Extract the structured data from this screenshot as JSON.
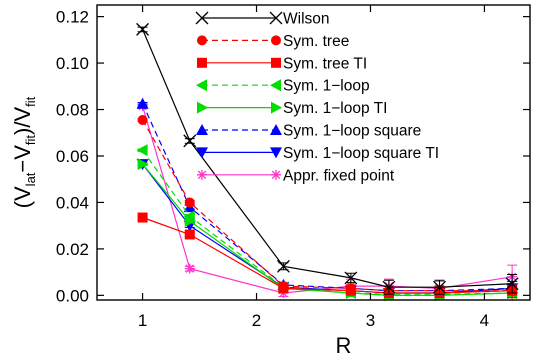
{
  "chart_data": {
    "type": "line",
    "xlabel": "R",
    "ylabel": {
      "parts": [
        "(V",
        "lat",
        "−V",
        "fit",
        ")/V",
        "fit"
      ]
    },
    "xlim": [
      0.6,
      4.4
    ],
    "ylim": [
      -0.002,
      0.125
    ],
    "xticks": [
      1,
      2,
      3,
      4
    ],
    "yticks": [
      0.0,
      0.02,
      0.04,
      0.06,
      0.08,
      0.1,
      0.12
    ],
    "xtick_labels": [
      "1",
      "2",
      "3",
      "4"
    ],
    "ytick_labels": [
      "0.00",
      "0.02",
      "0.04",
      "0.06",
      "0.08",
      "0.10",
      "0.12"
    ],
    "grid": false,
    "legend_position": "top-right",
    "series": [
      {
        "name": "Wilson",
        "color": "#000000",
        "marker": "x",
        "dash": "solid",
        "x": [
          1.0,
          1.414,
          2.236,
          2.828,
          3.162,
          3.606,
          4.243
        ],
        "y": [
          0.1145,
          0.0665,
          0.0125,
          0.0075,
          0.0035,
          0.0035,
          0.005
        ],
        "err": [
          0.001,
          0.001,
          0.0015,
          0.002,
          0.003,
          0.003,
          0.004
        ]
      },
      {
        "name": "Sym. tree",
        "color": "#ff0000",
        "marker": "circle",
        "dash": "dashed",
        "x": [
          1.0,
          1.414,
          2.236,
          2.828,
          3.162,
          3.606,
          4.243
        ],
        "y": [
          0.0755,
          0.04,
          0.004,
          0.003,
          0.002,
          0.002,
          0.002
        ],
        "err": [
          0.0005,
          0.0008,
          0.001,
          0.0015,
          0.002,
          0.002,
          0.003
        ]
      },
      {
        "name": "Sym. tree TI",
        "color": "#ff0000",
        "marker": "square",
        "dash": "solid",
        "x": [
          1.0,
          1.414,
          2.236,
          2.828,
          3.162,
          3.606,
          4.243
        ],
        "y": [
          0.0335,
          0.0262,
          0.003,
          0.002,
          0.001,
          0.001,
          0.002
        ],
        "err": [
          0.0005,
          0.0008,
          0.001,
          0.0015,
          0.002,
          0.002,
          0.003
        ]
      },
      {
        "name": "Sym. 1−loop",
        "color": "#00dd00",
        "marker": "triangle-left",
        "dash": "dashed",
        "x": [
          1.0,
          1.414,
          2.236,
          2.828,
          3.162,
          3.606,
          4.243
        ],
        "y": [
          0.0625,
          0.034,
          0.0035,
          0.001,
          0.0005,
          0.0005,
          0.001
        ],
        "err": [
          0.0005,
          0.0008,
          0.001,
          0.0015,
          0.002,
          0.002,
          0.003
        ]
      },
      {
        "name": "Sym. 1−loop TI",
        "color": "#00dd00",
        "marker": "triangle-right",
        "dash": "solid",
        "x": [
          1.0,
          1.414,
          2.236,
          2.828,
          3.162,
          3.606,
          4.243
        ],
        "y": [
          0.0565,
          0.032,
          0.003,
          0.001,
          0.0,
          0.0,
          0.001
        ],
        "err": [
          0.0005,
          0.0008,
          0.001,
          0.0015,
          0.002,
          0.002,
          0.003
        ]
      },
      {
        "name": "Sym. 1−loop square",
        "color": "#0000ff",
        "marker": "triangle-up",
        "dash": "dashed",
        "x": [
          1.0,
          1.414,
          2.236,
          2.828,
          3.162,
          3.606,
          4.243
        ],
        "y": [
          0.0825,
          0.038,
          0.0045,
          0.003,
          0.002,
          0.002,
          0.003
        ],
        "err": [
          0.0005,
          0.0008,
          0.001,
          0.0015,
          0.002,
          0.002,
          0.003
        ]
      },
      {
        "name": "Sym. 1−loop square TI",
        "color": "#0000ff",
        "marker": "triangle-down",
        "dash": "solid",
        "x": [
          1.0,
          1.414,
          2.236,
          2.828,
          3.162,
          3.606,
          4.243
        ],
        "y": [
          0.0565,
          0.03,
          0.0035,
          0.002,
          0.001,
          0.001,
          0.003
        ],
        "err": [
          0.0005,
          0.0008,
          0.001,
          0.0015,
          0.002,
          0.002,
          0.003
        ]
      },
      {
        "name": "Appr. fixed point",
        "color": "#ff33cc",
        "marker": "asterisk",
        "dash": "solid",
        "x": [
          1.0,
          1.414,
          2.236,
          2.828,
          3.162,
          3.606,
          4.243
        ],
        "y": [
          0.0815,
          0.0115,
          0.001,
          0.004,
          0.004,
          0.003,
          0.008
        ],
        "err": [
          0.001,
          0.001,
          0.0015,
          0.003,
          0.003,
          0.003,
          0.005
        ]
      }
    ]
  }
}
